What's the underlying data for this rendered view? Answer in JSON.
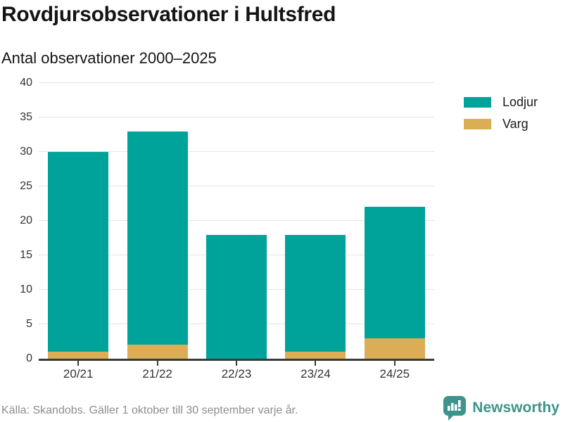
{
  "header": {
    "title": "Rovdjursobservationer i Hultsfred",
    "subtitle": "Antal observationer 2000–2025"
  },
  "chart_data": {
    "type": "bar",
    "stacked": true,
    "title": "Rovdjursobservationer i Hultsfred",
    "subtitle": "Antal observationer 2000–2025",
    "categories": [
      "20/21",
      "21/22",
      "22/23",
      "23/24",
      "24/25"
    ],
    "series": [
      {
        "name": "Lodjur",
        "color": "#00a399",
        "values": [
          29,
          31,
          18,
          17,
          19
        ]
      },
      {
        "name": "Varg",
        "color": "#dbae55",
        "values": [
          1,
          2,
          0,
          1,
          3
        ]
      }
    ],
    "stack_totals": [
      30,
      33,
      18,
      18,
      22
    ],
    "xlabel": "",
    "ylabel": "",
    "ylim": [
      0,
      40
    ],
    "yticks": [
      0,
      5,
      10,
      15,
      20,
      25,
      30,
      35,
      40
    ],
    "grid": "horizontal",
    "legend_position": "right"
  },
  "colors": {
    "lodjur": "#00a399",
    "varg": "#dbae55",
    "gridline": "#e4e4e4",
    "axis": "#3a3a3a",
    "brand_teal": "#3e948c"
  },
  "footer": {
    "source": "Källa: Skandobs. Gäller 1 oktober till 30 september varje år.",
    "brand": "Newsworthy"
  }
}
